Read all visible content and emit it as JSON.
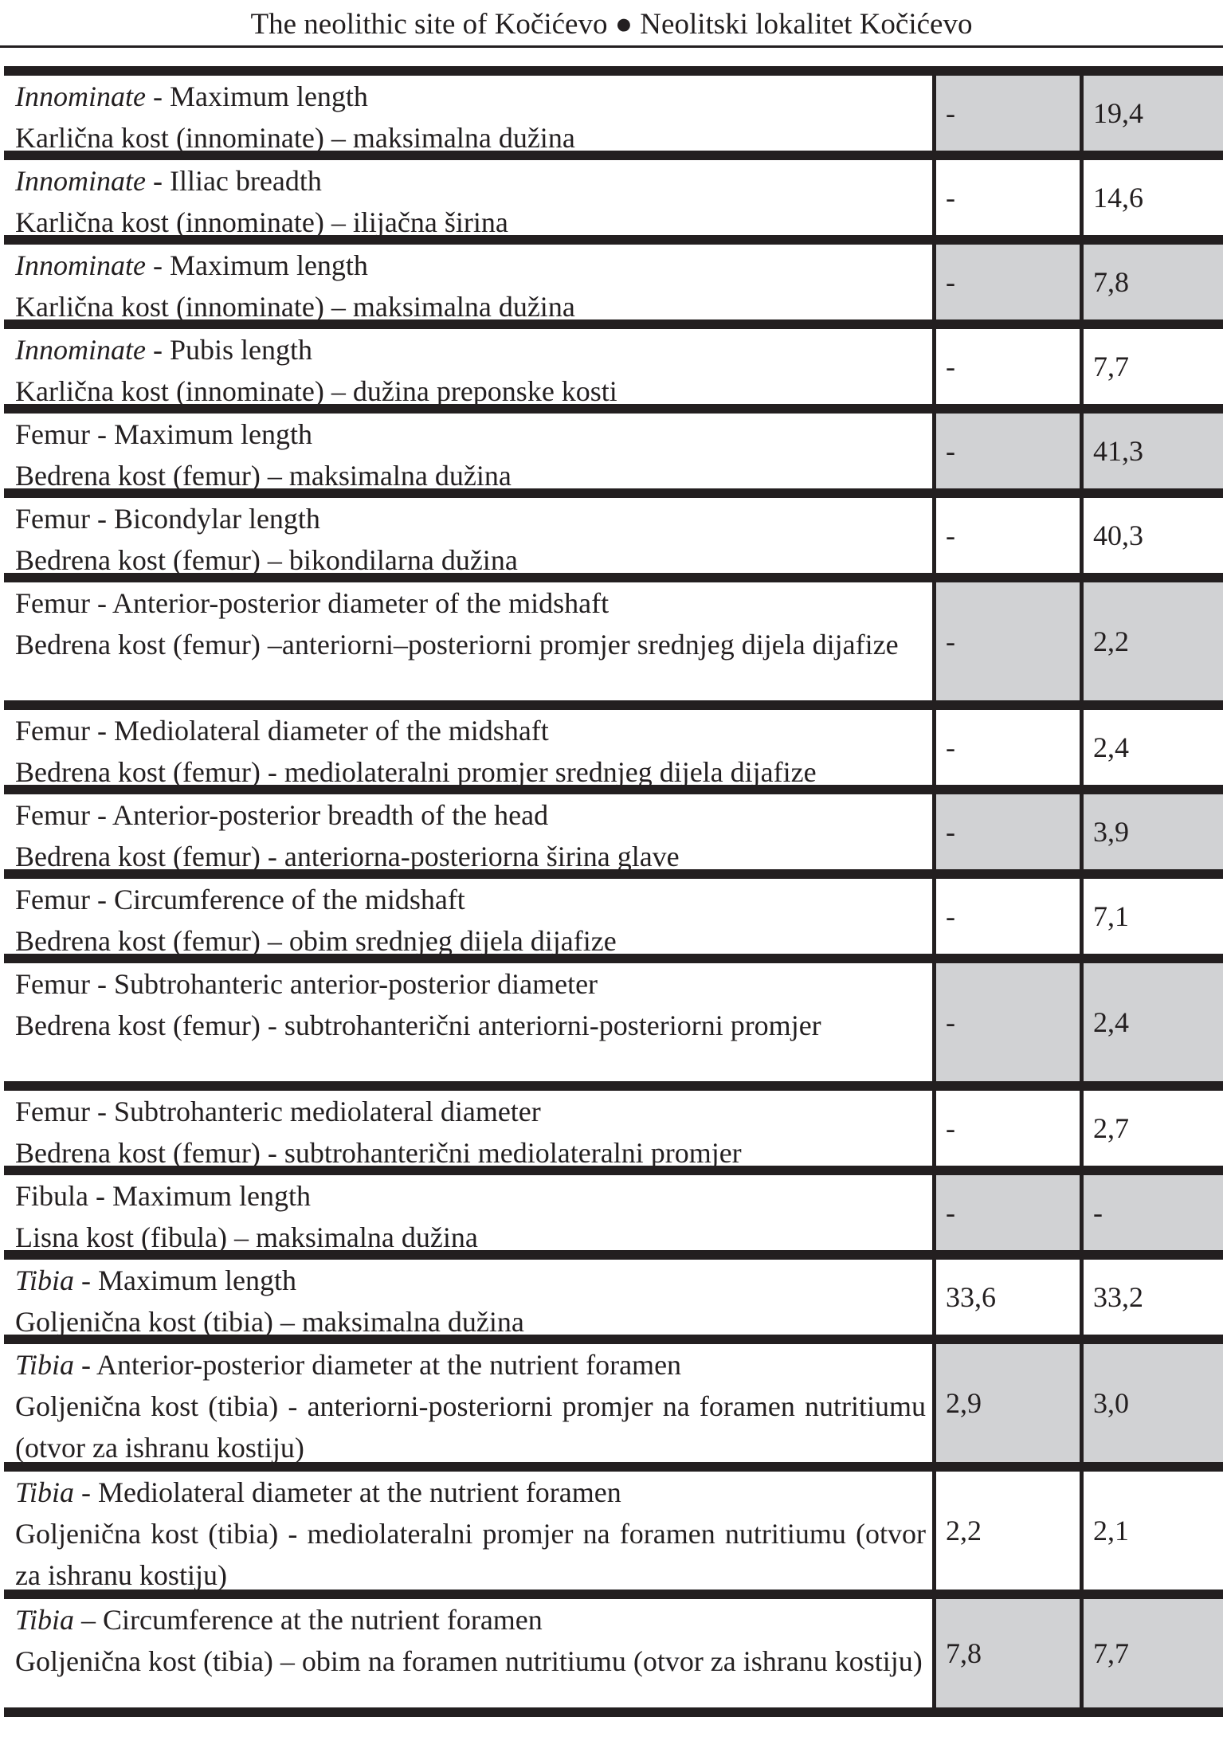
{
  "header": {
    "title": "The neolithic site of Kočićevo ● Neolitski lokalitet Kočićevo"
  },
  "rows": [
    {
      "bone": "Innominate",
      "italic": true,
      "en": " - Maximum length",
      "sr": "Karlična kost (innominate) – maksimalna dužina",
      "v1": "-",
      "v2": "19,4"
    },
    {
      "bone": "Innominate",
      "italic": true,
      "en": " - Illiac breadth",
      "sr": "Karlična kost (innominate) – ilijačna širina",
      "v1": "-",
      "v2": "14,6"
    },
    {
      "bone": "Innominate",
      "italic": true,
      "en": " - Maximum length",
      "sr": "Karlična kost (innominate) – maksimalna dužina",
      "v1": "-",
      "v2": "7,8"
    },
    {
      "bone": "Innominate",
      "italic": true,
      "en": " - Pubis length",
      "sr": "Karlična kost (innominate) – dužina preponske kosti",
      "v1": "-",
      "v2": "7,7"
    },
    {
      "bone": "Femur",
      "italic": false,
      "en": " - Maximum length",
      "sr": "Bedrena kost (femur) – maksimalna dužina",
      "v1": "-",
      "v2": "41,3"
    },
    {
      "bone": "Femur",
      "italic": false,
      "en": " - Bicondylar length",
      "sr": "Bedrena kost (femur) – bikondilarna dužina",
      "v1": "-",
      "v2": "40,3"
    },
    {
      "bone": "Femur",
      "italic": false,
      "en": " - Anterior-posterior diameter of the midshaft",
      "sr": "Bedrena kost (femur) –anteriorni–posteriorni promjer srednjeg dijela dijafize",
      "v1": "-",
      "v2": "2,2"
    },
    {
      "bone": "Femur",
      "italic": false,
      "en": " - Mediolateral diameter of the midshaft",
      "sr": "Bedrena kost (femur) - mediolateralni promjer srednjeg dijela dijafize",
      "v1": "-",
      "v2": "2,4"
    },
    {
      "bone": "Femur",
      "italic": false,
      "en": " - Anterior-posterior breadth of the head",
      "sr": "Bedrena kost (femur) - anteriorna-posteriorna širina glave",
      "v1": "-",
      "v2": "3,9"
    },
    {
      "bone": "Femur",
      "italic": false,
      "en": " - Circumference of the midshaft",
      "sr": "Bedrena kost (femur) – obim srednjeg dijela dijafize",
      "v1": "-",
      "v2": "7,1"
    },
    {
      "bone": "Femur",
      "italic": false,
      "en": " - Subtrohanteric anterior-posterior diameter",
      "sr": "Bedrena kost (femur) - subtrohanterični anteriorni-posteriorni promjer",
      "v1": "-",
      "v2": "2,4"
    },
    {
      "bone": "Femur",
      "italic": false,
      "en": " - Subtrohanteric mediolateral diameter",
      "sr": "Bedrena kost (femur) - subtrohanterični mediolateralni promjer",
      "v1": "-",
      "v2": "2,7"
    },
    {
      "bone": "Fibula",
      "italic": false,
      "en": " - Maximum length",
      "sr": "Lisna kost (fibula) – maksimalna dužina",
      "v1": "-",
      "v2": "-"
    },
    {
      "bone": "Tibia",
      "italic": true,
      "en": " - Maximum length",
      "sr": "Goljenična kost (tibia) – maksimalna dužina",
      "v1": "33,6",
      "v2": "33,2"
    },
    {
      "bone": "Tibia",
      "italic": true,
      "en": " - Anterior-posterior diameter at the nutrient foramen",
      "sr": "Goljenična kost (tibia) - anteriorni-posteriorni promjer na foramen nutritiumu (otvor za ishranu kostiju)",
      "v1": "2,9",
      "v2": "3,0"
    },
    {
      "bone": "Tibia",
      "italic": true,
      "en": " - Mediolateral diameter at the nutrient foramen",
      "sr": "Goljenična kost (tibia) - mediolateralni promjer na foramen nutritiumu (otvor za ishranu kostiju)",
      "v1": "2,2",
      "v2": "2,1"
    },
    {
      "bone": "Tibia",
      "italic": true,
      "en": " – Circumference at the nutrient foramen",
      "sr": "Goljenična kost (tibia) – obim na foramen nutritiumu (otvor za ishranu kostiju)",
      "v1": "7,8",
      "v2": "7,7"
    }
  ],
  "colors": {
    "shade": "#d1d2d4",
    "rule": "#231f20"
  }
}
